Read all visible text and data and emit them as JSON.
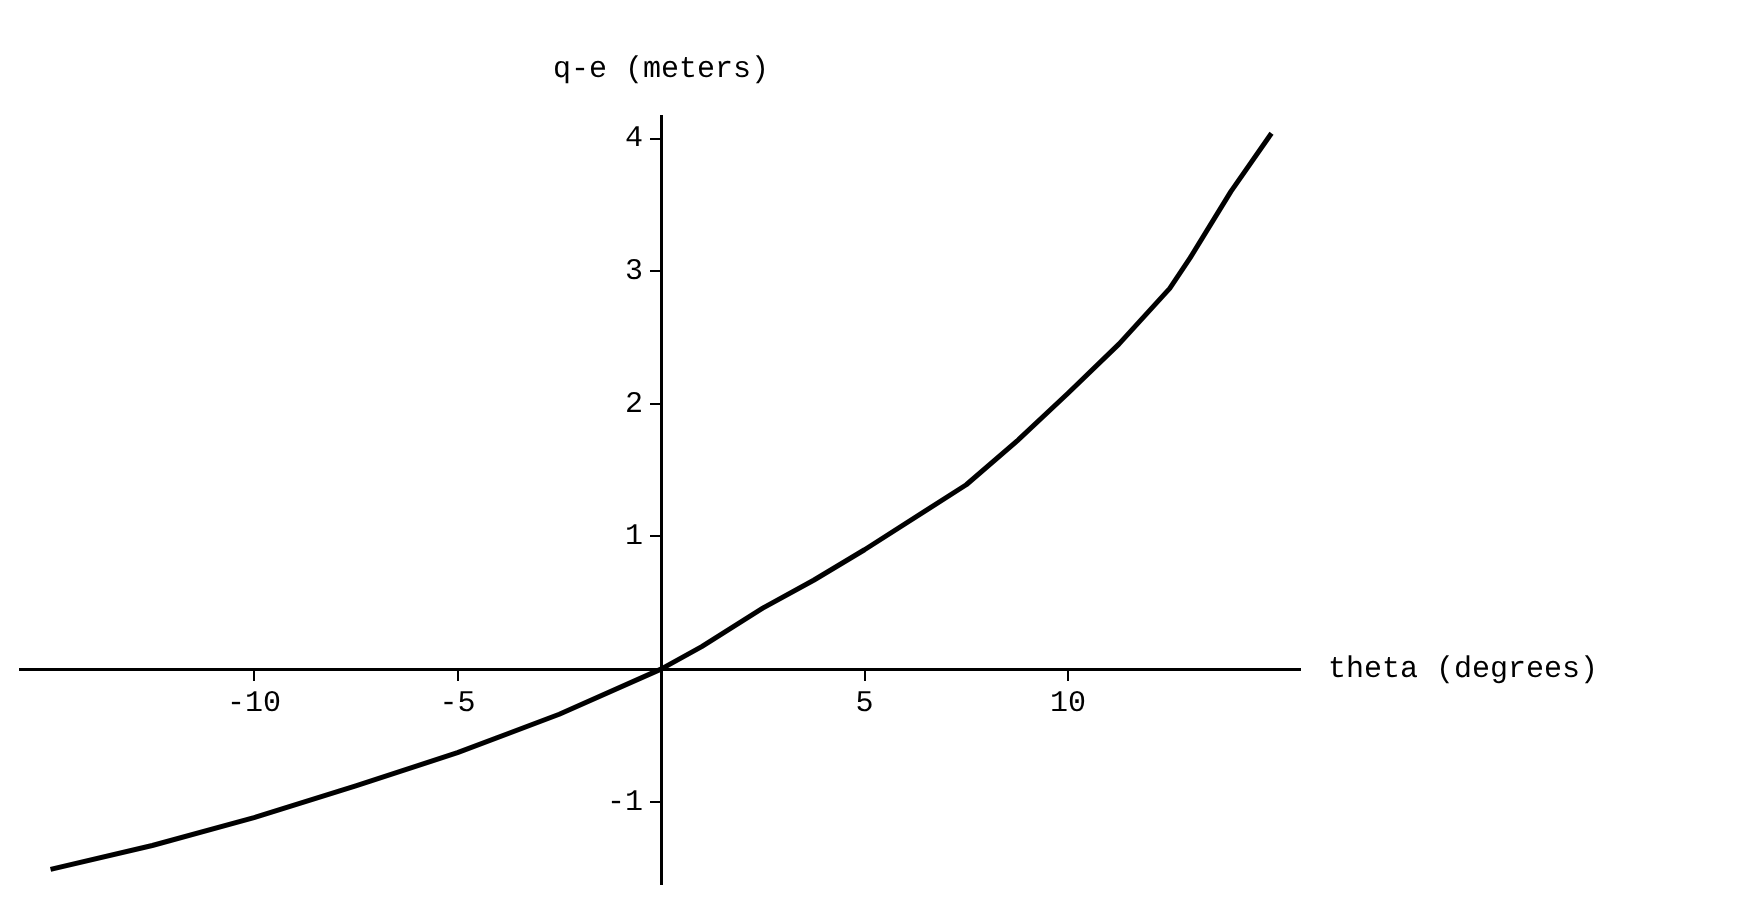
{
  "chart_data": {
    "type": "line",
    "xlabel": "theta (degrees)",
    "ylabel": "q-e (meters)",
    "x": [
      -15,
      -12.5,
      -10,
      -7.5,
      -5,
      -2.5,
      0,
      1,
      2.5,
      3.75,
      5,
      7.5,
      8.75,
      10,
      11.25,
      12.5,
      13,
      14,
      15
    ],
    "values": [
      -1.51,
      -1.33,
      -1.12,
      -0.88,
      -0.63,
      -0.34,
      0,
      0.17,
      0.46,
      0.67,
      0.9,
      1.39,
      1.72,
      2.08,
      2.45,
      2.87,
      3.1,
      3.6,
      4.04
    ],
    "color": "#000000",
    "marker": "none",
    "xlim": [
      -15.75,
      15.7
    ],
    "ylim": [
      -1.62,
      4.17
    ],
    "xticks": [
      -10,
      -5,
      5,
      10
    ],
    "yticks": [
      -1,
      1,
      2,
      3,
      4
    ]
  }
}
